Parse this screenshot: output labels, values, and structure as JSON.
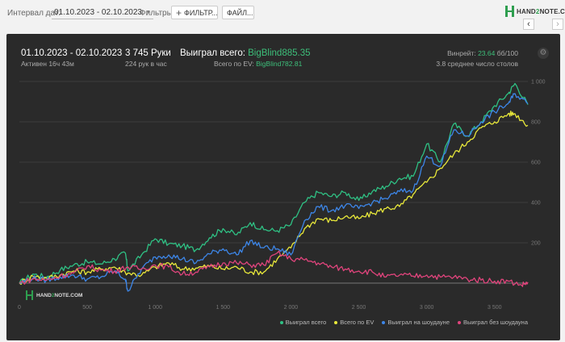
{
  "toolbar": {
    "interval_label": "Интервал дат:",
    "date_range": "01.10.2023 - 02.10.2023",
    "filters_label": "Фильтры:",
    "filter_button": "ФИЛЬТР...",
    "file_button": "ФАЙЛ..."
  },
  "logo": {
    "hand": "HAND",
    "two": "2",
    "note": "NOTE.COM"
  },
  "nav": {
    "prev": "‹",
    "next": "›"
  },
  "summary": {
    "date": "01.10.2023 - 02.10.2023",
    "active": "Активен 16ч 43м",
    "hands": "3 745 Руки",
    "hands_per_hour": "224 рук в час",
    "won_label": "Выиграл всего:",
    "won_value": "BigBlind885.35",
    "ev_label": "Всего по EV:",
    "ev_value": "BigBlind782.81",
    "winrate_label": "Винрейт:",
    "winrate_value": "23.64",
    "winrate_unit": "бб/100",
    "tables": "3.8 среднее число столов"
  },
  "watermark": {
    "hand": "HAND",
    "two": "2",
    "note": "NOTE.COM"
  },
  "colors": {
    "won": "#2fc184",
    "ev": "#e8e83a",
    "showdown": "#3d86e8",
    "no_showdown": "#e0447c"
  },
  "chart_data": {
    "type": "line",
    "x_ticks": [
      "0",
      "500",
      "1 000",
      "1 500",
      "2 000",
      "2 500",
      "3 000",
      "3 500"
    ],
    "y_ticks": [
      "200",
      "400",
      "600",
      "800",
      "1 000"
    ],
    "xlim": [
      0,
      3745
    ],
    "ylim": [
      -60,
      1000
    ],
    "series": [
      {
        "name": "Выиграл всего",
        "color": "#2fc184",
        "x": [
          0,
          100,
          200,
          300,
          400,
          500,
          600,
          700,
          780,
          800,
          900,
          1000,
          1100,
          1200,
          1300,
          1400,
          1500,
          1600,
          1700,
          1800,
          1900,
          2000,
          2100,
          2200,
          2300,
          2400,
          2500,
          2600,
          2700,
          2800,
          2900,
          3000,
          3100,
          3200,
          3300,
          3400,
          3500,
          3600,
          3650,
          3745
        ],
        "y": [
          0,
          45,
          30,
          65,
          90,
          105,
          95,
          120,
          150,
          60,
          140,
          220,
          195,
          185,
          165,
          225,
          270,
          240,
          300,
          265,
          260,
          290,
          400,
          450,
          430,
          450,
          410,
          455,
          480,
          520,
          530,
          690,
          600,
          790,
          730,
          800,
          880,
          940,
          990,
          885
        ]
      },
      {
        "name": "Всего по EV",
        "color": "#e8e83a",
        "x": [
          0,
          100,
          200,
          300,
          400,
          500,
          600,
          700,
          800,
          900,
          1000,
          1100,
          1200,
          1300,
          1400,
          1500,
          1600,
          1700,
          1800,
          1900,
          2000,
          2100,
          2200,
          2300,
          2400,
          2500,
          2600,
          2700,
          2800,
          2900,
          3000,
          3100,
          3200,
          3300,
          3400,
          3500,
          3600,
          3650,
          3745
        ],
        "y": [
          0,
          35,
          25,
          40,
          60,
          55,
          70,
          80,
          50,
          40,
          80,
          100,
          70,
          75,
          85,
          70,
          80,
          55,
          55,
          120,
          175,
          270,
          320,
          310,
          330,
          320,
          345,
          370,
          380,
          440,
          500,
          570,
          640,
          700,
          770,
          800,
          840,
          840,
          783
        ]
      },
      {
        "name": "Выиграл на шоудауне",
        "color": "#3d86e8",
        "x": [
          0,
          100,
          200,
          300,
          400,
          500,
          600,
          700,
          780,
          800,
          900,
          1000,
          1100,
          1200,
          1300,
          1400,
          1500,
          1600,
          1700,
          1800,
          1900,
          2000,
          2100,
          2200,
          2300,
          2400,
          2500,
          2600,
          2700,
          2800,
          2900,
          3000,
          3100,
          3200,
          3300,
          3400,
          3500,
          3600,
          3650,
          3745
        ],
        "y": [
          0,
          25,
          15,
          30,
          40,
          20,
          30,
          60,
          20,
          -40,
          70,
          130,
          140,
          120,
          100,
          145,
          170,
          140,
          210,
          175,
          170,
          140,
          310,
          380,
          360,
          385,
          370,
          400,
          420,
          455,
          460,
          630,
          580,
          760,
          730,
          800,
          850,
          890,
          940,
          890
        ]
      },
      {
        "name": "Выиграл без шоудауна",
        "color": "#e0447c",
        "x": [
          0,
          100,
          200,
          300,
          400,
          500,
          600,
          700,
          800,
          900,
          1000,
          1100,
          1200,
          1300,
          1400,
          1500,
          1600,
          1700,
          1800,
          1900,
          2000,
          2100,
          2200,
          2300,
          2400,
          2500,
          2600,
          2700,
          2800,
          2900,
          3000,
          3100,
          3200,
          3300,
          3400,
          3500,
          3600,
          3700,
          3745
        ],
        "y": [
          0,
          20,
          15,
          35,
          50,
          85,
          65,
          60,
          80,
          70,
          90,
          80,
          45,
          55,
          80,
          100,
          100,
          90,
          90,
          150,
          120,
          115,
          100,
          80,
          70,
          60,
          55,
          30,
          40,
          35,
          40,
          30,
          30,
          20,
          15,
          10,
          10,
          -10,
          5
        ]
      }
    ],
    "legend_position": "bottom-right",
    "grid": true
  },
  "legend": [
    {
      "label": "Выиграл всего",
      "color": "#2fc184"
    },
    {
      "label": "Всего по EV",
      "color": "#e8e83a"
    },
    {
      "label": "Выиграл на шоудауне",
      "color": "#3d86e8"
    },
    {
      "label": "Выиграл без шоудауна",
      "color": "#e0447c"
    }
  ]
}
